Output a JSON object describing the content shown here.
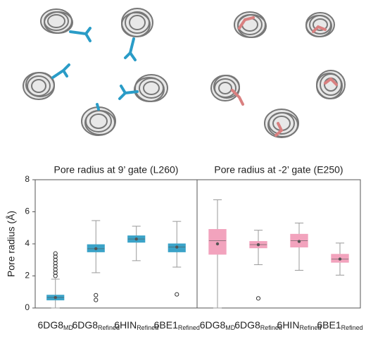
{
  "chart_data": [
    {
      "type": "box",
      "title": "Pore radius at 9’ gate (L260)",
      "ylabel": "Pore radius (Å)",
      "color": "#3ba3c8",
      "ylim": [
        0,
        8
      ],
      "yticks": [
        0,
        2,
        4,
        6,
        8
      ],
      "categories": [
        {
          "text": "6DG8",
          "sub": "MD"
        },
        {
          "text": "6DG8",
          "sub": "Refined"
        },
        {
          "text": "6HIN",
          "sub": "Refined"
        },
        {
          "text": "6BE1",
          "sub": "Refined"
        }
      ],
      "boxes": [
        {
          "whisker_low": 0.0,
          "q1": 0.5,
          "median": 0.65,
          "q3": 0.8,
          "whisker_high": 1.8,
          "mean": 0.65,
          "outliers": [
            2.0,
            2.2,
            2.4,
            2.6,
            2.8,
            3.0,
            3.2,
            3.4
          ]
        },
        {
          "whisker_low": 2.2,
          "q1": 3.5,
          "median": 3.7,
          "q3": 3.95,
          "whisker_high": 5.45,
          "mean": 3.7,
          "outliers": [
            0.8,
            0.5
          ]
        },
        {
          "whisker_low": 2.95,
          "q1": 4.1,
          "median": 4.3,
          "q3": 4.5,
          "whisker_high": 5.1,
          "mean": 4.3,
          "outliers": []
        },
        {
          "whisker_low": 2.55,
          "q1": 3.5,
          "median": 3.8,
          "q3": 4.0,
          "whisker_high": 5.4,
          "mean": 3.8,
          "outliers": [
            0.85
          ]
        }
      ]
    },
    {
      "type": "box",
      "title": "Pore radius at -2’ gate (E250)",
      "color": "#f2a3bd",
      "ylim": [
        0,
        8
      ],
      "categories": [
        {
          "text": "6DG8",
          "sub": "MD"
        },
        {
          "text": "6DG8",
          "sub": "Refined"
        },
        {
          "text": "6HIN",
          "sub": "Refined"
        },
        {
          "text": "6BE1",
          "sub": "Refined"
        }
      ],
      "boxes": [
        {
          "whisker_low": 0.0,
          "q1": 3.35,
          "median": 4.2,
          "q3": 4.9,
          "whisker_high": 6.75,
          "mean": 4.0,
          "outliers": []
        },
        {
          "whisker_low": 2.7,
          "q1": 3.75,
          "median": 3.95,
          "q3": 4.15,
          "whisker_high": 4.85,
          "mean": 3.95,
          "outliers": [
            0.6
          ]
        },
        {
          "whisker_low": 2.35,
          "q1": 3.8,
          "median": 4.2,
          "q3": 4.6,
          "whisker_high": 5.3,
          "mean": 4.15,
          "outliers": []
        },
        {
          "whisker_low": 2.05,
          "q1": 2.85,
          "median": 3.05,
          "q3": 3.35,
          "whisker_high": 4.05,
          "mean": 3.05,
          "outliers": []
        }
      ]
    }
  ]
}
